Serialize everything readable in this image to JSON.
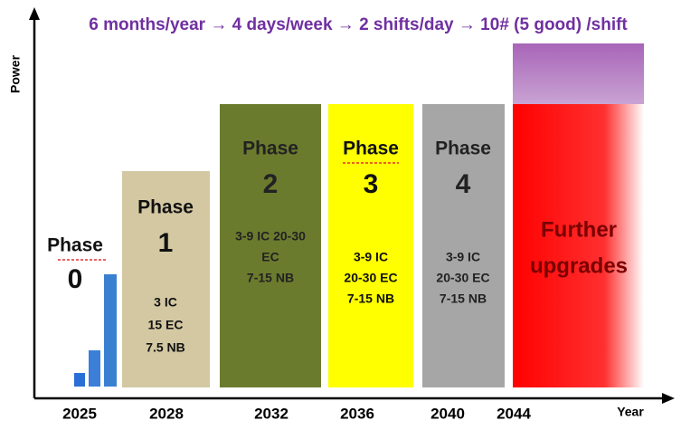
{
  "header": {
    "title": "6 months/year → 4 days/week → 2 shifts/day → 10# (5 good) /shift"
  },
  "axes": {
    "y_label": "Power",
    "x_label": "Year"
  },
  "years": [
    "2025",
    "2028",
    "2032",
    "2036",
    "2040",
    "2044"
  ],
  "phases": [
    {
      "title": "Phase",
      "number": "0",
      "lines": []
    },
    {
      "title": "Phase",
      "number": "1",
      "lines": [
        "3 IC",
        "15 EC",
        "7.5 NB"
      ]
    },
    {
      "title": "Phase",
      "number": "2",
      "lines": [
        "3-9 IC 20-30",
        "EC",
        "7-15 NB"
      ]
    },
    {
      "title": "Phase",
      "number": "3",
      "lines": [
        "3-9 IC",
        "20-30 EC",
        "7-15 NB"
      ]
    },
    {
      "title": "Phase",
      "number": "4",
      "lines": [
        "3-9 IC",
        "20-30 EC",
        "7-15 NB"
      ]
    }
  ],
  "further": {
    "lines": [
      "Further",
      "upgrades"
    ]
  }
}
